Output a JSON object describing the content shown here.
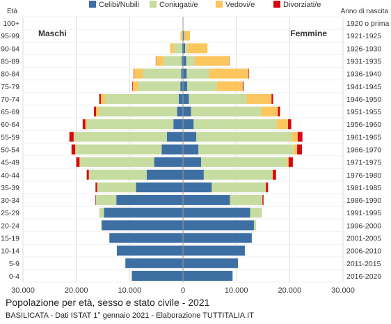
{
  "chart_data": {
    "type": "bar",
    "orientation": "horizontal-population-pyramid",
    "title": "Popolazione per età, sesso e stato civile - 2021",
    "subtitle": "BASILICATA - Dati ISTAT 1° gennaio 2021 - Elaborazione TUTTITALIA.IT",
    "ylabel_left": "Età",
    "ylabel_right": "Anno di nascita",
    "left_side_label": "Maschi",
    "right_side_label": "Femmine",
    "legend_position": "top",
    "grid": true,
    "xlim": [
      -30000,
      30000
    ],
    "x_ticks": [
      -30000,
      -20000,
      -10000,
      0,
      10000,
      20000,
      30000
    ],
    "x_tick_labels": [
      "30.000",
      "20.000",
      "10.000",
      "0",
      "10.000",
      "20.000",
      "30.000"
    ],
    "age_groups": [
      "100+",
      "95-99",
      "90-94",
      "85-89",
      "80-84",
      "75-79",
      "70-74",
      "65-69",
      "60-64",
      "55-59",
      "50-54",
      "45-49",
      "40-44",
      "35-39",
      "30-34",
      "25-29",
      "20-24",
      "15-19",
      "10-14",
      "5-9",
      "0-4"
    ],
    "birth_years": [
      "1920 o prima",
      "1921-1925",
      "1926-1930",
      "1931-1935",
      "1936-1940",
      "1941-1945",
      "1946-1950",
      "1951-1955",
      "1956-1960",
      "1961-1965",
      "1966-1970",
      "1971-1975",
      "1976-1980",
      "1981-1985",
      "1986-1990",
      "1991-1995",
      "1996-2000",
      "2001-2005",
      "2006-2010",
      "2011-2015",
      "2016-2020"
    ],
    "series": [
      {
        "name": "Celibi/Nubili",
        "color": "#3d6fa3",
        "males": [
          10,
          60,
          130,
          250,
          350,
          500,
          800,
          1100,
          1800,
          3000,
          4000,
          5400,
          6800,
          8800,
          12500,
          14800,
          15200,
          13800,
          12400,
          10800,
          9600
        ],
        "females": [
          15,
          200,
          400,
          600,
          700,
          800,
          1100,
          1500,
          2000,
          2500,
          2900,
          3400,
          3900,
          5400,
          8800,
          12600,
          13300,
          12900,
          11600,
          10300,
          9300
        ]
      },
      {
        "name": "Coniugati/e",
        "color": "#c6dca0",
        "males": [
          5,
          200,
          1600,
          3300,
          7200,
          7900,
          13800,
          14600,
          16200,
          17300,
          16100,
          13900,
          10800,
          7300,
          3800,
          900,
          200,
          0,
          0,
          0,
          0
        ],
        "females": [
          5,
          100,
          400,
          1600,
          4200,
          5500,
          10800,
          13100,
          15600,
          17900,
          17800,
          16100,
          12800,
          10100,
          6100,
          2200,
          400,
          0,
          0,
          0,
          0
        ]
      },
      {
        "name": "Vedovi/e",
        "color": "#fcc65f",
        "males": [
          15,
          200,
          700,
          1500,
          1600,
          1000,
          800,
          600,
          300,
          200,
          100,
          100,
          50,
          0,
          0,
          0,
          0,
          0,
          0,
          0,
          0
        ],
        "females": [
          60,
          1000,
          3800,
          6500,
          7400,
          4900,
          4700,
          3200,
          2100,
          1100,
          700,
          300,
          150,
          50,
          0,
          0,
          0,
          0,
          0,
          0,
          0
        ]
      },
      {
        "name": "Divorziati/e",
        "color": "#d40a12",
        "males": [
          0,
          0,
          0,
          50,
          100,
          100,
          300,
          400,
          500,
          800,
          700,
          600,
          400,
          300,
          100,
          0,
          0,
          0,
          0,
          0,
          0
        ],
        "females": [
          0,
          0,
          0,
          50,
          100,
          150,
          300,
          400,
          600,
          900,
          900,
          800,
          600,
          400,
          200,
          0,
          0,
          0,
          0,
          0,
          0
        ]
      }
    ]
  }
}
